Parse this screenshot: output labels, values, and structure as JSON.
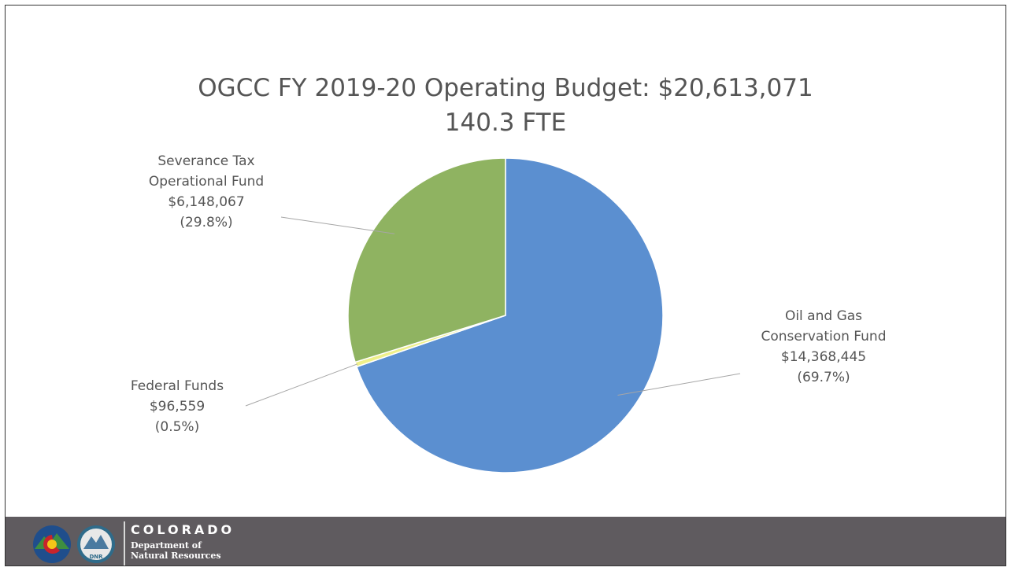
{
  "chart_data": {
    "type": "pie",
    "title": "OGCC FY 2019-20 Operating Budget: $20,613,071",
    "subtitle": "140.3 FTE",
    "slices": [
      {
        "label_lines": [
          "Oil and Gas",
          "Conservation Fund"
        ],
        "amount": "$14,368,445",
        "percent_label": "(69.7%)",
        "value": 69.7,
        "color": "#5b8fd0"
      },
      {
        "label_lines": [
          "Federal Funds"
        ],
        "amount": "$96,559",
        "percent_label": "(0.5%)",
        "value": 0.5,
        "color": "#eef08a"
      },
      {
        "label_lines": [
          "Severance Tax",
          "Operational Fund"
        ],
        "amount": "$6,148,067",
        "percent_label": "(29.8%)",
        "value": 29.8,
        "color": "#8fb361"
      }
    ],
    "legend": "none"
  },
  "footer": {
    "brand_name": "COLORADO",
    "department_line1": "Department of",
    "department_line2": "Natural Resources",
    "logo_badge": "DNR"
  },
  "icons": [
    "colorado-flag-logo",
    "dnr-mountain-logo"
  ]
}
